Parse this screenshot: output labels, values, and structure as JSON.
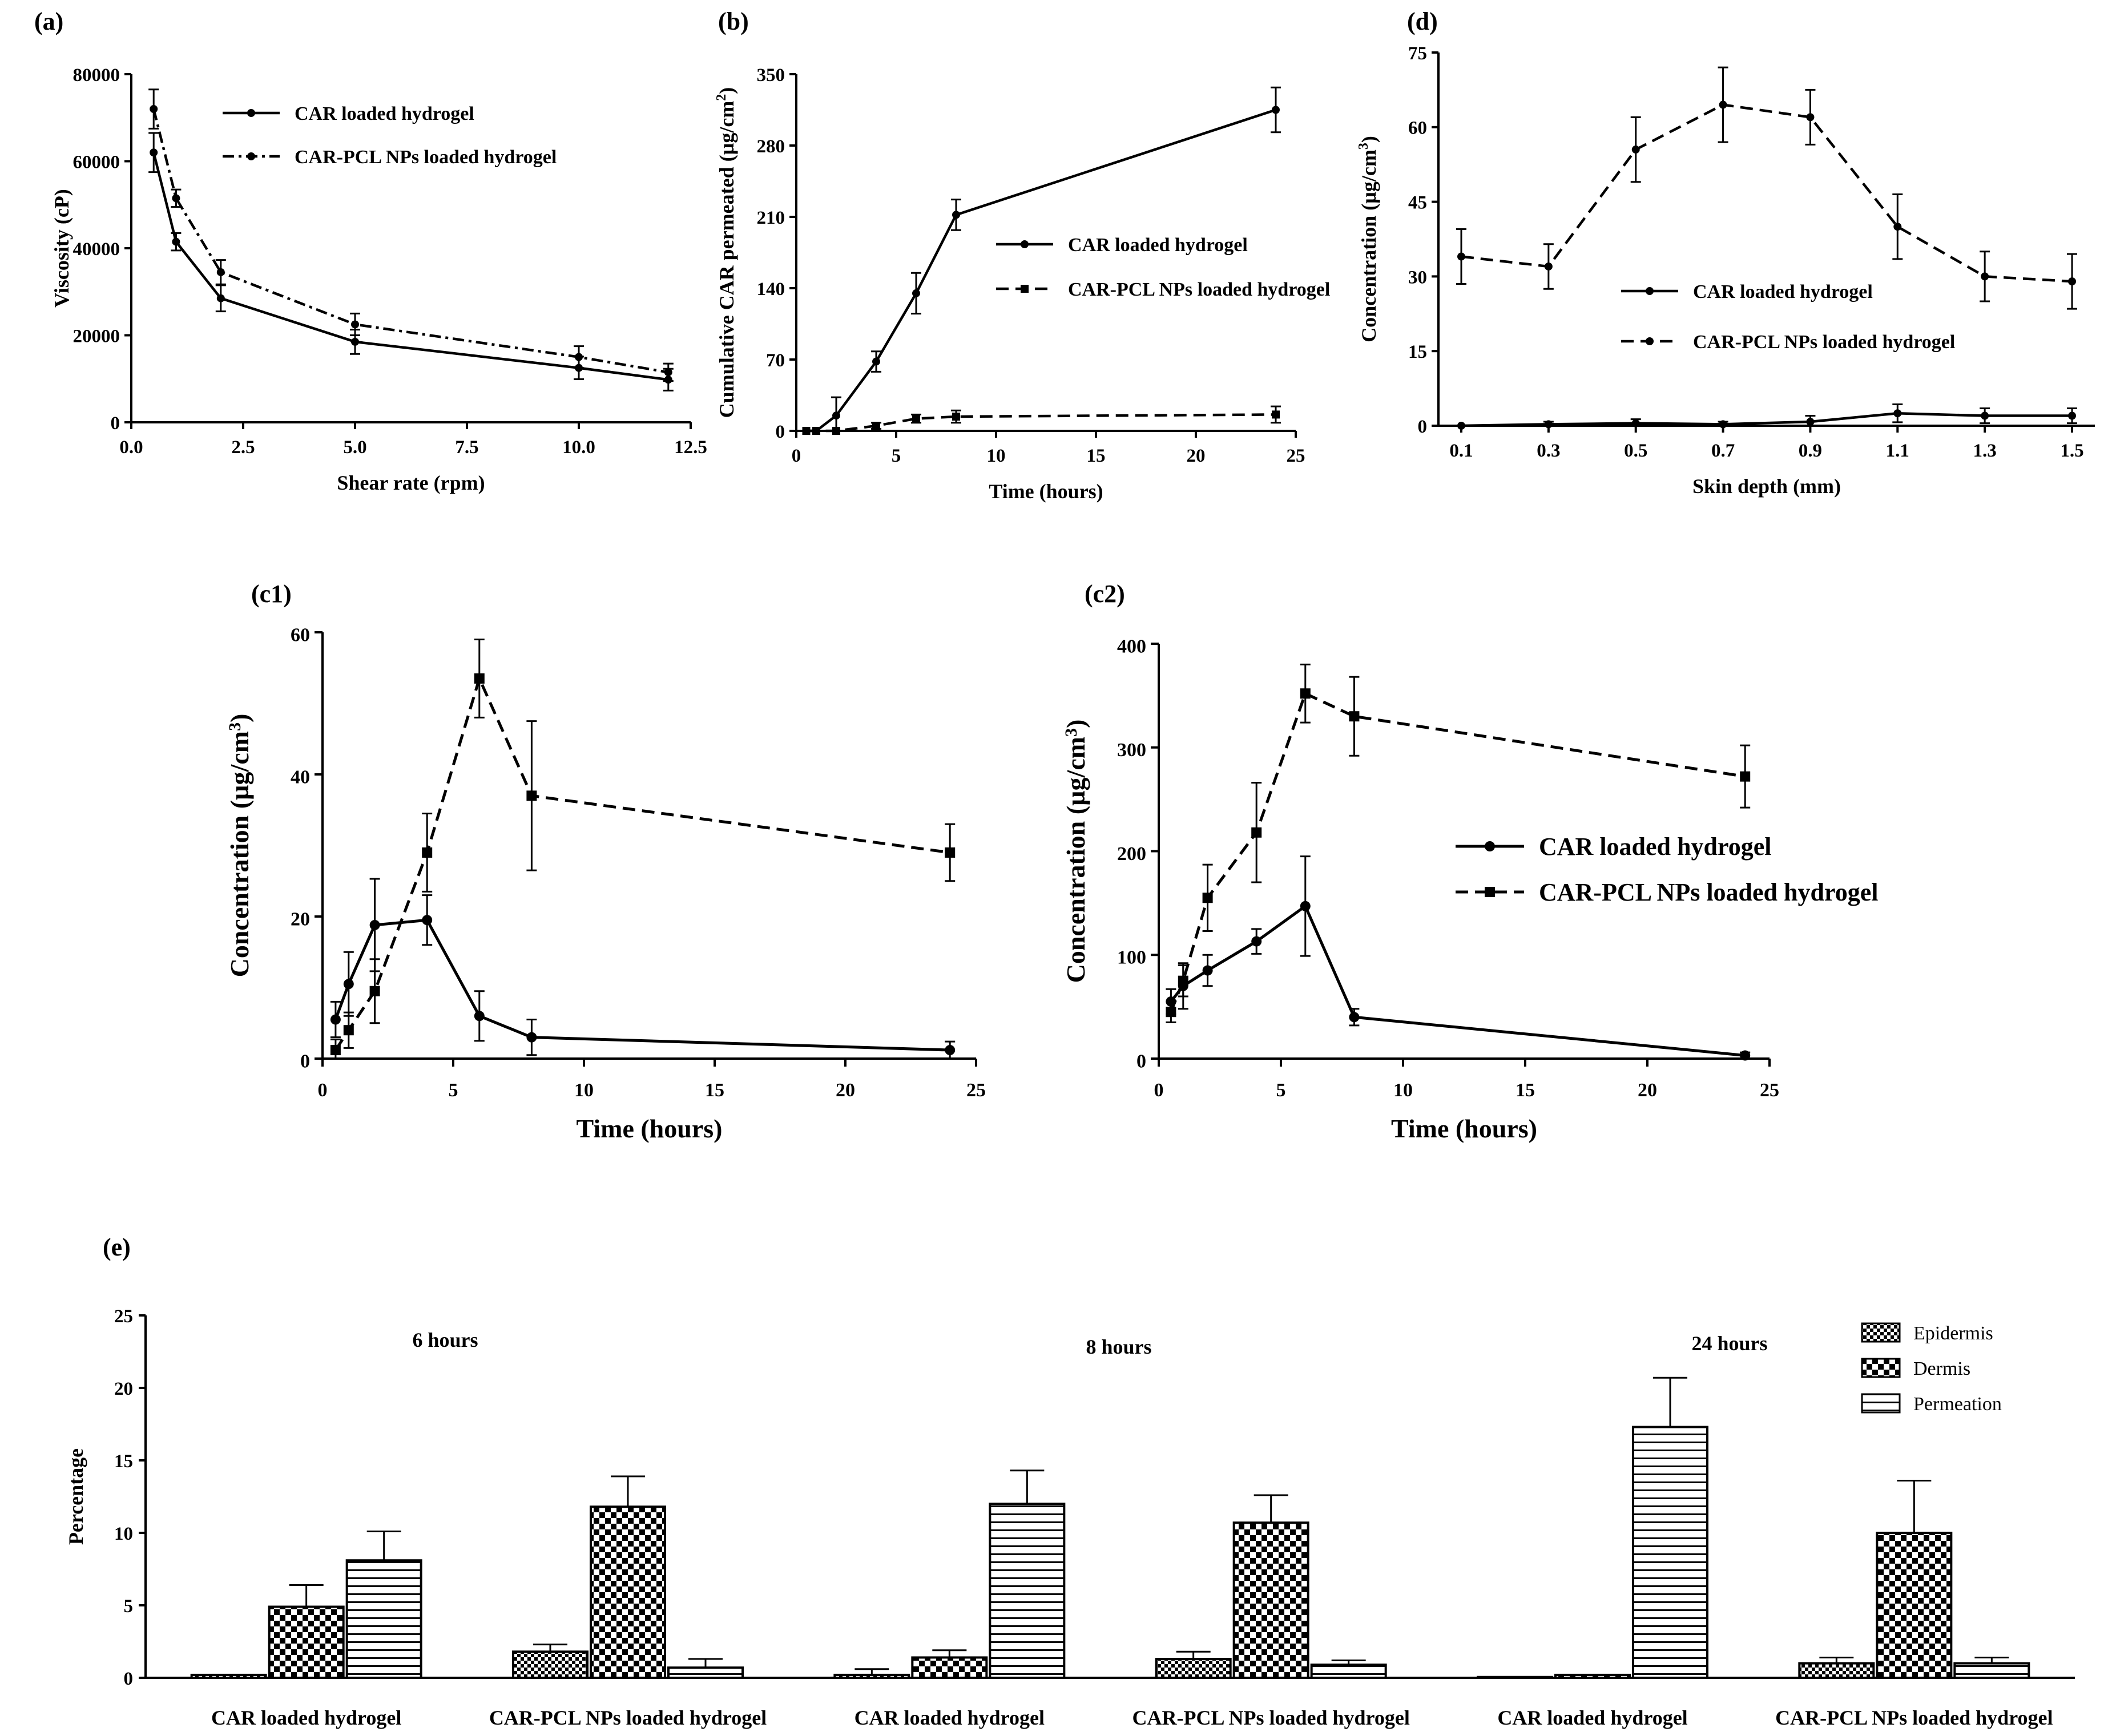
{
  "chart_data": [
    {
      "id": "a",
      "panel_label": "(a)",
      "type": "line",
      "xlabel": "Shear rate (rpm)",
      "ylabel": "Viscosity (cP)",
      "xlim": [
        0,
        12.5
      ],
      "ylim": [
        0,
        80000
      ],
      "xticks": [
        "0.0",
        "2.5",
        "5.0",
        "7.5",
        "10.0",
        "12.5"
      ],
      "yticks": [
        "0",
        "20000",
        "40000",
        "60000",
        "80000"
      ],
      "legend_position": "top-right",
      "series": [
        {
          "name": "CAR loaded hydrogel",
          "style": "solid",
          "marker": "circle",
          "x": [
            0.5,
            1,
            2,
            5,
            10,
            12
          ],
          "y": [
            62000,
            41500,
            28500,
            18500,
            12500,
            9800
          ],
          "err": [
            4500,
            2000,
            3000,
            2800,
            2600,
            2500
          ]
        },
        {
          "name": "CAR-PCL NPs loaded hydrogel",
          "style": "dashdot",
          "marker": "circle",
          "x": [
            0.5,
            1,
            2,
            5,
            10,
            12
          ],
          "y": [
            72000,
            51500,
            34500,
            22500,
            15000,
            11500
          ],
          "err": [
            4500,
            2000,
            2800,
            2500,
            2500,
            2000
          ]
        }
      ]
    },
    {
      "id": "b",
      "panel_label": "(b)",
      "type": "line",
      "xlabel": "Time (hours)",
      "ylabel_main": "Cumulative CAR permeated (µg/cm",
      "ylabel_sup": "2",
      "ylabel_close": ")",
      "xlim": [
        0,
        25
      ],
      "ylim": [
        0,
        350
      ],
      "xticks": [
        "0",
        "5",
        "10",
        "15",
        "20",
        "25"
      ],
      "yticks": [
        "0",
        "70",
        "140",
        "210",
        "280",
        "350"
      ],
      "legend_position": "middle-right",
      "series": [
        {
          "name": "CAR loaded hydrogel",
          "style": "solid",
          "marker": "circle",
          "x": [
            0.5,
            1,
            2,
            4,
            6,
            8,
            24
          ],
          "y": [
            0,
            0,
            15,
            68,
            135,
            212,
            315
          ],
          "err": [
            0,
            0,
            18,
            10,
            20,
            15,
            22
          ]
        },
        {
          "name": "CAR-PCL NPs loaded hydrogel",
          "style": "dashed",
          "marker": "square",
          "x": [
            0.5,
            1,
            2,
            4,
            6,
            8,
            24
          ],
          "y": [
            0,
            0,
            0,
            5,
            12,
            14,
            16
          ],
          "err": [
            0,
            0,
            0,
            3,
            4,
            6,
            8
          ]
        }
      ]
    },
    {
      "id": "d",
      "panel_label": "(d)",
      "type": "line",
      "xlabel": "Skin depth (mm)",
      "ylabel_main": "Concentration (µg/cm",
      "ylabel_sup": "3",
      "ylabel_close": ")",
      "xlim": [
        0.1,
        1.5
      ],
      "ylim": [
        0,
        75
      ],
      "categories": [
        "0.1",
        "0.3",
        "0.5",
        "0.7",
        "0.9",
        "1.1",
        "1.3",
        "1.5"
      ],
      "yticks": [
        "0",
        "15",
        "30",
        "45",
        "60",
        "75"
      ],
      "legend_position": "middle-right",
      "series": [
        {
          "name": "CAR loaded hydrogel",
          "style": "solid",
          "marker": "circle",
          "x": [
            0.1,
            0.3,
            0.5,
            0.7,
            0.9,
            1.1,
            1.3,
            1.5
          ],
          "y": [
            0,
            0.3,
            0.5,
            0.3,
            0.8,
            2.5,
            2.0,
            2.0
          ],
          "err": [
            0,
            0.5,
            0.8,
            0.5,
            1.2,
            1.8,
            1.5,
            1.5
          ]
        },
        {
          "name": "CAR-PCL NPs loaded hydrogel",
          "style": "dashed",
          "marker": "circle",
          "x": [
            0.1,
            0.3,
            0.5,
            0.7,
            0.9,
            1.1,
            1.3,
            1.5
          ],
          "y": [
            34,
            32,
            55.5,
            64.5,
            62,
            40,
            30,
            29
          ],
          "err": [
            5.5,
            4.5,
            6.5,
            7.5,
            5.5,
            6.5,
            5,
            5.5
          ]
        }
      ]
    },
    {
      "id": "c1",
      "panel_label": "(c1)",
      "type": "line",
      "xlabel": "Time (hours)",
      "ylabel_main": "Concentration (µg/cm",
      "ylabel_sup": "3",
      "ylabel_close": ")",
      "xlim": [
        0,
        25
      ],
      "ylim": [
        0,
        60
      ],
      "xticks": [
        "0",
        "5",
        "10",
        "15",
        "20",
        "25"
      ],
      "yticks": [
        "0",
        "20",
        "40",
        "60"
      ],
      "legend_position": "none",
      "series": [
        {
          "name": "CAR loaded hydrogel",
          "style": "solid",
          "marker": "circle",
          "x": [
            0.5,
            1,
            2,
            4,
            6,
            8,
            24
          ],
          "y": [
            5.5,
            10.5,
            18.8,
            19.5,
            6,
            3,
            1.2
          ],
          "err": [
            2.5,
            4.5,
            6.5,
            3.5,
            3.5,
            2.5,
            1.2
          ]
        },
        {
          "name": "CAR-PCL NPs loaded hydrogel",
          "style": "dashed",
          "marker": "square",
          "x": [
            0.5,
            1,
            2,
            4,
            6,
            8,
            24
          ],
          "y": [
            1.2,
            4,
            9.5,
            29,
            53.5,
            37,
            29
          ],
          "err": [
            1.5,
            2.5,
            4.5,
            5.5,
            5.5,
            10.5,
            4
          ]
        }
      ]
    },
    {
      "id": "c2",
      "panel_label": "(c2)",
      "type": "line",
      "xlabel": "Time (hours)",
      "ylabel_main": "Concentration (µg/cm",
      "ylabel_sup": "3",
      "ylabel_close": ")",
      "xlim": [
        0,
        25
      ],
      "ylim": [
        0,
        400
      ],
      "xticks": [
        "0",
        "5",
        "10",
        "15",
        "20",
        "25"
      ],
      "yticks": [
        "0",
        "100",
        "200",
        "300",
        "400"
      ],
      "legend_position": "middle-right",
      "series": [
        {
          "name": "CAR loaded hydrogel",
          "style": "solid",
          "marker": "circle",
          "x": [
            0.5,
            1,
            2,
            4,
            6,
            8,
            24
          ],
          "y": [
            55,
            70,
            85,
            113,
            147,
            40,
            3
          ],
          "err": [
            12,
            22,
            15,
            12,
            48,
            8,
            3
          ]
        },
        {
          "name": "CAR-PCL NPs loaded hydrogel",
          "style": "dashed",
          "marker": "square",
          "x": [
            0.5,
            1,
            2,
            4,
            6,
            8,
            24
          ],
          "y": [
            45,
            75,
            155,
            218,
            352,
            330,
            272
          ],
          "err": [
            10,
            15,
            32,
            48,
            28,
            38,
            30
          ]
        }
      ]
    },
    {
      "id": "e",
      "panel_label": "(e)",
      "type": "bar",
      "ylabel": "Percentage",
      "ylim": [
        0,
        25
      ],
      "yticks": [
        "0",
        "5",
        "10",
        "15",
        "20",
        "25"
      ],
      "legend_position": "top-right",
      "group_labels": [
        "6 hours",
        "8 hours",
        "24 hours"
      ],
      "categories": [
        "CAR loaded hydrogel",
        "CAR-PCL NPs loaded hydrogel",
        "CAR loaded hydrogel",
        "CAR-PCL NPs loaded hydrogel",
        "CAR loaded hydrogel",
        "CAR-PCL NPs loaded hydrogel"
      ],
      "series": [
        {
          "name": "Epidermis",
          "pattern": "fine-check",
          "values": [
            0.2,
            1.8,
            0.2,
            1.3,
            0.05,
            1.0
          ],
          "err": [
            0,
            0.5,
            0.4,
            0.5,
            0,
            0.4
          ]
        },
        {
          "name": "Dermis",
          "pattern": "coarse-check",
          "values": [
            4.9,
            11.8,
            1.4,
            10.7,
            0.2,
            10.0
          ],
          "err": [
            1.5,
            2.1,
            0.5,
            1.9,
            0,
            3.6
          ]
        },
        {
          "name": "Permeation",
          "pattern": "horizontal-lines",
          "values": [
            8.1,
            0.7,
            12.0,
            0.9,
            17.3,
            1.0
          ],
          "err": [
            2.0,
            0.6,
            2.3,
            0.3,
            3.4,
            0.4
          ]
        }
      ]
    }
  ]
}
